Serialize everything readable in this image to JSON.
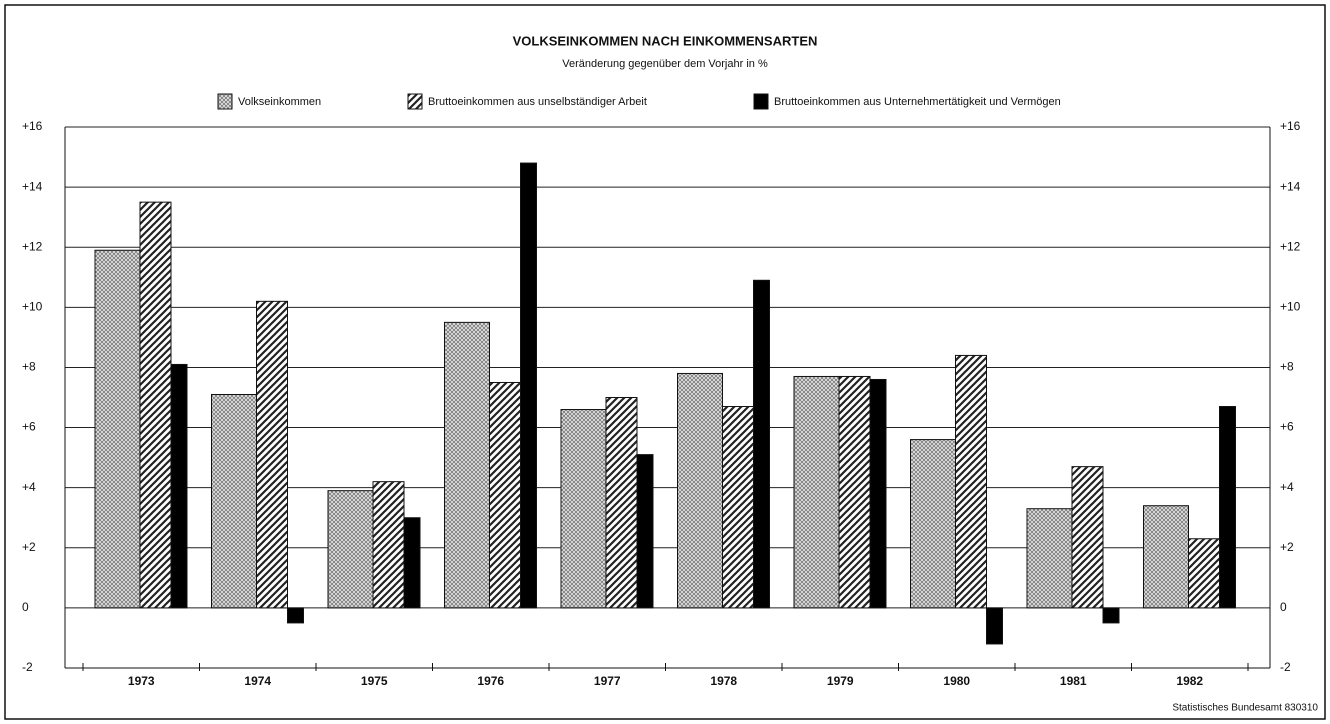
{
  "chart_data": {
    "type": "bar",
    "title": "VOLKSEINKOMMEN NACH EINKOMMENSARTEN",
    "subtitle": "Veränderung gegenüber dem Vorjahr in %",
    "source": "Statistisches Bundesamt 830310",
    "categories": [
      "1973",
      "1974",
      "1975",
      "1976",
      "1977",
      "1978",
      "1979",
      "1980",
      "1981",
      "1982"
    ],
    "series": [
      {
        "name": "Volkseinkommen",
        "color": "#888888",
        "values": [
          11.9,
          7.1,
          3.9,
          9.5,
          6.6,
          7.8,
          7.7,
          5.6,
          3.3,
          3.4
        ]
      },
      {
        "name": "Bruttoeinkommen aus unselbständiger Arbeit",
        "color": "#222222",
        "values": [
          13.5,
          10.2,
          4.2,
          7.5,
          7.0,
          6.7,
          7.7,
          8.4,
          4.7,
          2.3
        ]
      },
      {
        "name": "Bruttoeinkommen aus Unternehmertätigkeit und Vermögen",
        "color": "#000000",
        "values": [
          8.1,
          -0.5,
          3.0,
          14.8,
          5.1,
          10.9,
          7.6,
          -1.2,
          -0.5,
          6.7
        ]
      }
    ],
    "ylim": [
      -2,
      16
    ],
    "yticks": [
      {
        "value": 16,
        "label": "+16"
      },
      {
        "value": 14,
        "label": "+14"
      },
      {
        "value": 12,
        "label": "+12"
      },
      {
        "value": 10,
        "label": "+10"
      },
      {
        "value": 8,
        "label": "+8"
      },
      {
        "value": 6,
        "label": "+6"
      },
      {
        "value": 4,
        "label": "+4"
      },
      {
        "value": 2,
        "label": "+2"
      },
      0,
      -2
    ],
    "grid": true
  }
}
